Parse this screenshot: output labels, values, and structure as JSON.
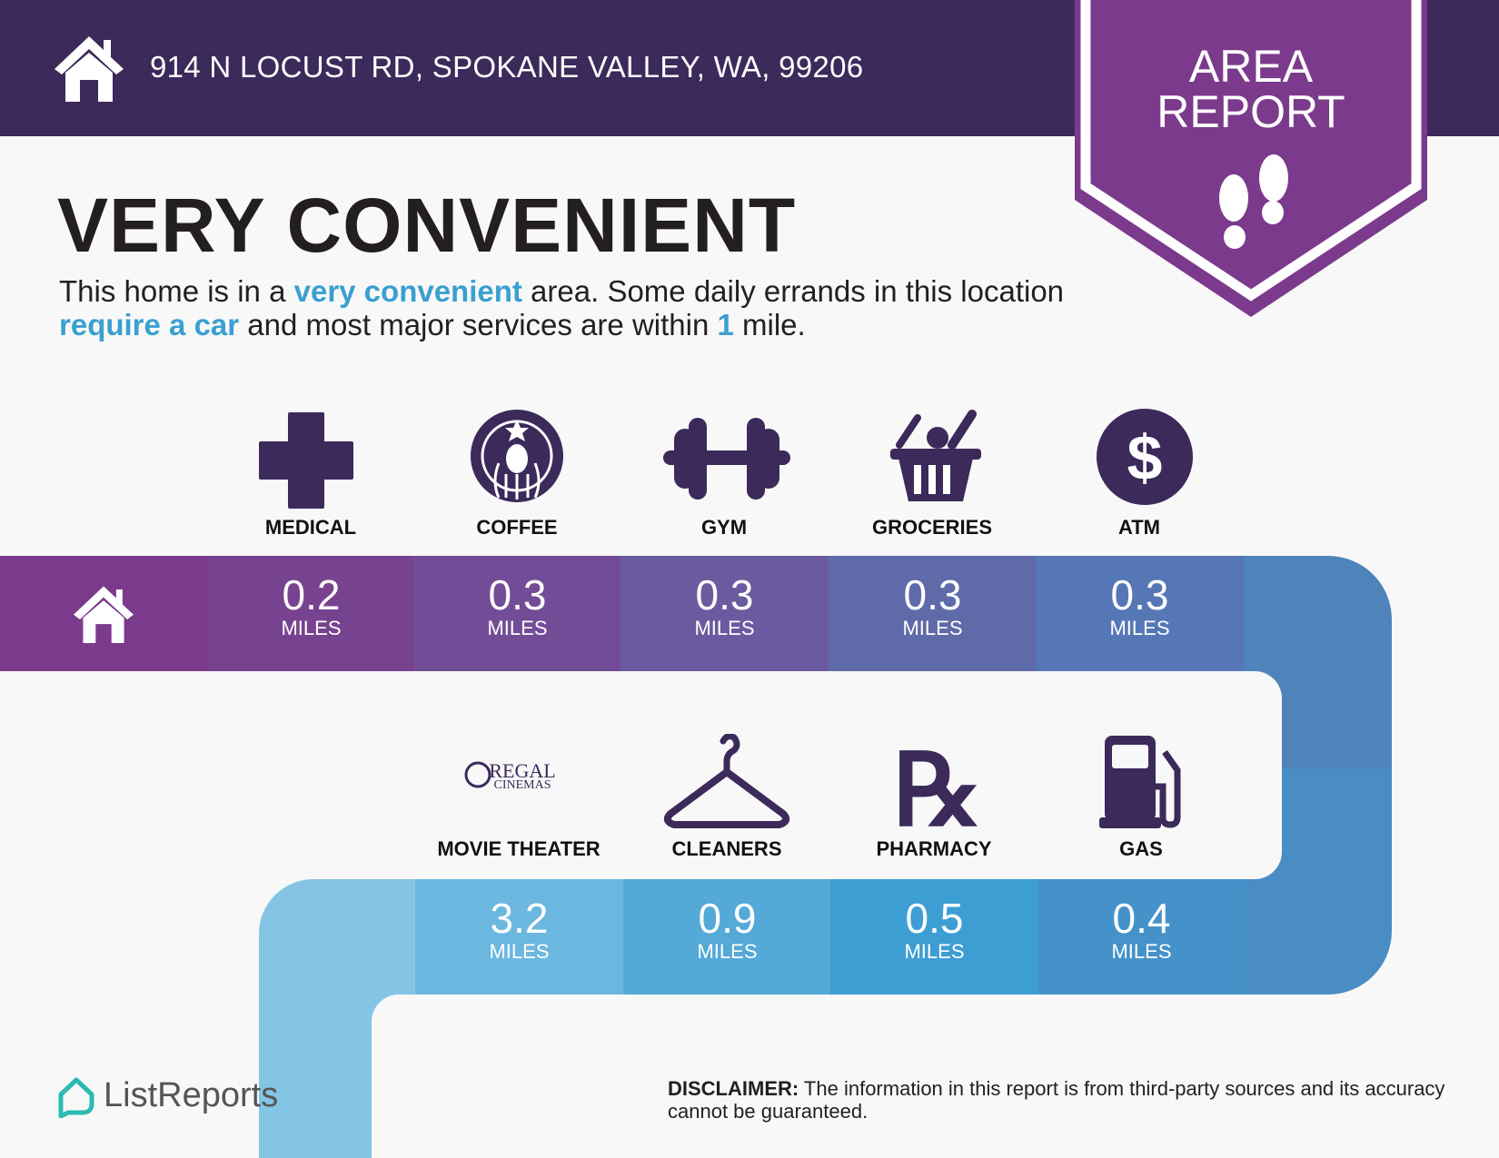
{
  "header": {
    "address": "914 N LOCUST RD, SPOKANE VALLEY, WA, 99206",
    "home_icon": "house-icon"
  },
  "banner": {
    "line1": "AREA",
    "line2": "REPORT",
    "icon": "footprints-icon",
    "color": "#7b3a8c"
  },
  "title": "VERY CONVENIENT",
  "description": {
    "p1": "This home is in a ",
    "h1": "very convenient",
    "p2": " area. Some daily errands in this location ",
    "h2": "require a car",
    "p3": " and most major services are within ",
    "h3": "1",
    "p4": " mile."
  },
  "colors": {
    "header": "#3b2a5a",
    "highlight": "#3aa0d0",
    "icon": "#3b2a5a"
  },
  "row1": [
    {
      "label": "MEDICAL",
      "value": "0.2",
      "unit": "MILES",
      "icon": "medical-cross-icon",
      "color": "#77428f"
    },
    {
      "label": "COFFEE",
      "value": "0.3",
      "unit": "MILES",
      "icon": "starbucks-logo-icon",
      "color": "#734c97"
    },
    {
      "label": "GYM",
      "value": "0.3",
      "unit": "MILES",
      "icon": "dumbbell-icon",
      "color": "#6a5ba0"
    },
    {
      "label": "GROCERIES",
      "value": "0.3",
      "unit": "MILES",
      "icon": "grocery-basket-icon",
      "color": "#5f6aa9"
    },
    {
      "label": "ATM",
      "value": "0.3",
      "unit": "MILES",
      "icon": "dollar-icon",
      "color": "#5577b5"
    }
  ],
  "row2": [
    {
      "label": "MOVIE THEATER",
      "value": "3.2",
      "unit": "MILES",
      "icon": "regal-cinemas-logo",
      "logo_text1": "REGAL",
      "logo_text2": "CINEMAS",
      "color": "#6bb7df"
    },
    {
      "label": "CLEANERS",
      "value": "0.9",
      "unit": "MILES",
      "icon": "hanger-icon",
      "color": "#54a9d6"
    },
    {
      "label": "PHARMACY",
      "value": "0.5",
      "unit": "MILES",
      "icon": "rx-icon",
      "color": "#3d9ed3"
    },
    {
      "label": "GAS",
      "value": "0.4",
      "unit": "MILES",
      "icon": "gas-pump-icon",
      "color": "#4592ca"
    }
  ],
  "footer": {
    "logo": "ListReports",
    "disclaimer_label": "DISCLAIMER:",
    "disclaimer": " The information in this report is from third-party sources and its accuracy cannot be guaranteed."
  }
}
